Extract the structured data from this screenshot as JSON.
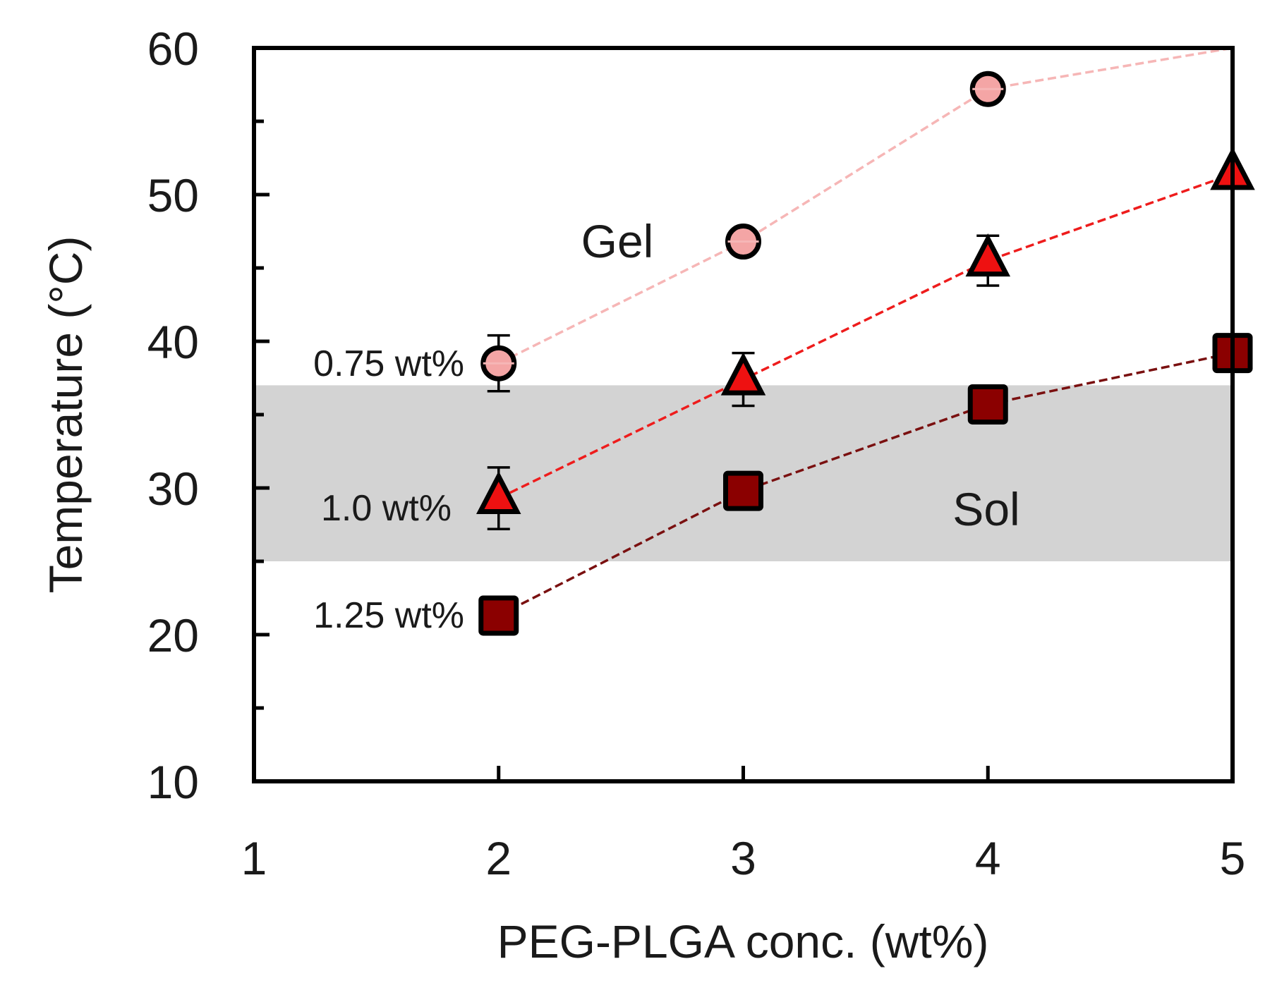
{
  "chart_data": {
    "type": "line",
    "xlabel": "PEG-PLGA conc. (wt%)",
    "ylabel": "Temperature (°C)",
    "xlim": [
      1,
      5
    ],
    "ylim": [
      10,
      60
    ],
    "xticks": [
      "1",
      "2",
      "3",
      "4",
      "5"
    ],
    "yticks": [
      "10",
      "20",
      "30",
      "40",
      "50",
      "60"
    ],
    "shaded_band": {
      "from": 25,
      "to": 37,
      "color": "#d3d3d3"
    },
    "region_labels": {
      "gel": "Gel",
      "sol": "Sol"
    },
    "series": [
      {
        "name": "0.75 wt%",
        "marker": "circle",
        "color": "#f4a5a5",
        "line_color": "#f6b6b6",
        "x": [
          2,
          3,
          4,
          5
        ],
        "y": [
          38.5,
          46.8,
          57.2,
          60
        ],
        "error": [
          1.9,
          0,
          0,
          0
        ],
        "marker_shown": [
          true,
          true,
          true,
          false
        ]
      },
      {
        "name": "1.0 wt%",
        "marker": "triangle",
        "color": "#ee1111",
        "line_color": "#ee1c1c",
        "x": [
          2,
          3,
          4,
          5
        ],
        "y": [
          29.3,
          37.4,
          45.5,
          51.4
        ],
        "error": [
          2.1,
          1.8,
          1.7,
          0
        ],
        "marker_shown": [
          true,
          true,
          true,
          true
        ]
      },
      {
        "name": "1.25 wt%",
        "marker": "square",
        "color": "#8b0000",
        "line_color": "#7a1010",
        "x": [
          2,
          3,
          4,
          5
        ],
        "y": [
          21.3,
          29.8,
          35.7,
          39.2
        ],
        "error": [
          0,
          0,
          0,
          0
        ],
        "marker_shown": [
          true,
          true,
          true,
          true
        ]
      }
    ]
  }
}
